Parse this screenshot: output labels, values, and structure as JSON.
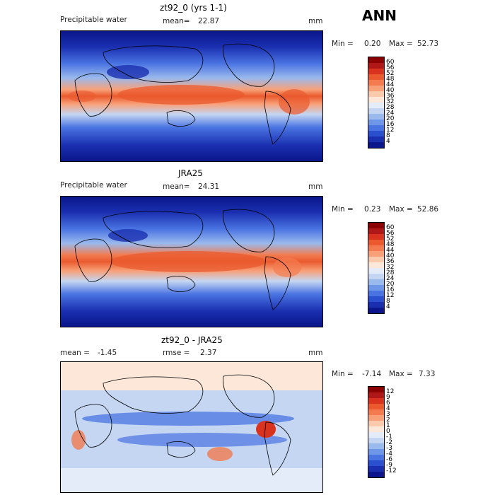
{
  "season": "ANN",
  "panels": [
    {
      "title": "zt92_0 (yrs 1-1)",
      "variable": "Precipitable water",
      "stat_label": "mean=",
      "stat_value": "22.87",
      "units": "mm",
      "min_label": "Min =",
      "min_value": "0.20",
      "max_label": "Max =",
      "max_value": "52.73"
    },
    {
      "title": "JRA25",
      "variable": "Precipitable water",
      "stat_label": "mean=",
      "stat_value": "24.31",
      "units": "mm",
      "min_label": "Min =",
      "min_value": "0.23",
      "max_label": "Max =",
      "max_value": "52.86"
    },
    {
      "title": "zt92_0 - JRA25",
      "stat_label": "mean =",
      "stat_value": "-1.45",
      "rmse_label": "rmse =",
      "rmse_value": "2.37",
      "units": "mm",
      "min_label": "Min =",
      "min_value": "-7.14",
      "max_label": "Max =",
      "max_value": "7.33"
    }
  ],
  "colorbar_abs": {
    "levels": [
      "60",
      "56",
      "52",
      "48",
      "44",
      "40",
      "36",
      "32",
      "28",
      "24",
      "20",
      "16",
      "12",
      "8",
      "4"
    ],
    "colors": [
      "#8b0000",
      "#b01818",
      "#d9331f",
      "#ea5a2e",
      "#f37b4f",
      "#f8a078",
      "#fbc9ab",
      "#fde7d9",
      "#e3ecf8",
      "#c4d6f2",
      "#9ab9ec",
      "#6f97e7",
      "#4a74e2",
      "#2a4fcf",
      "#1a2fb0",
      "#0a168a"
    ]
  },
  "colorbar_diff": {
    "levels": [
      "12",
      "9",
      "6",
      "4",
      "3",
      "2",
      "1",
      "0",
      "-1",
      "-2",
      "-3",
      "-4",
      "-6",
      "-9",
      "-12"
    ],
    "colors": [
      "#8b0000",
      "#b01818",
      "#d9331f",
      "#ea5a2e",
      "#f37b4f",
      "#f8a078",
      "#fbc9ab",
      "#fde7d9",
      "#e3ecf8",
      "#c4d6f2",
      "#9ab9ec",
      "#6f97e7",
      "#4a74e2",
      "#2a4fcf",
      "#1a2fb0",
      "#0a168a"
    ]
  }
}
